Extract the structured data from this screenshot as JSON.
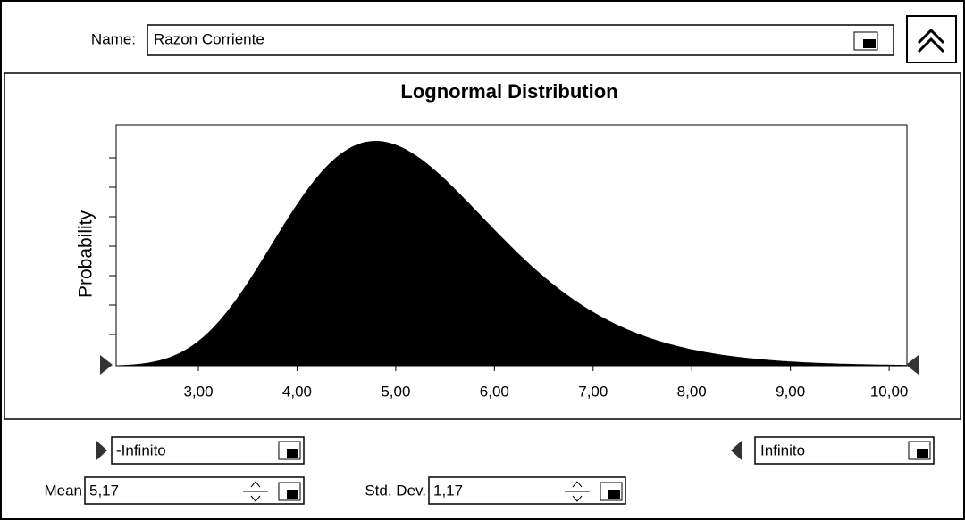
{
  "name_label": "Name:",
  "name_value": "Razon Corriente",
  "chart": {
    "type": "lognormal",
    "title": "Lognormal Distribution",
    "ylabel": "Probability",
    "xlim": [
      2.167,
      10.18
    ],
    "xticks": [
      {
        "value": 3,
        "label": "3,00"
      },
      {
        "value": 4,
        "label": "4,00"
      },
      {
        "value": 5,
        "label": "5,00"
      },
      {
        "value": 6,
        "label": "6,00"
      },
      {
        "value": 7,
        "label": "7,00"
      },
      {
        "value": 8,
        "label": "8,00"
      },
      {
        "value": 9,
        "label": "9,00"
      },
      {
        "value": 10,
        "label": "10,00"
      }
    ],
    "color": "#000000"
  },
  "lower_bound": "-Infinito",
  "upper_bound": "Infinito",
  "mean_label": "Mean",
  "mean": {
    "value": 5.17,
    "label": "5,17"
  },
  "std_label": "Std. Dev.",
  "std": {
    "value": 1.17,
    "label": "1,17"
  }
}
